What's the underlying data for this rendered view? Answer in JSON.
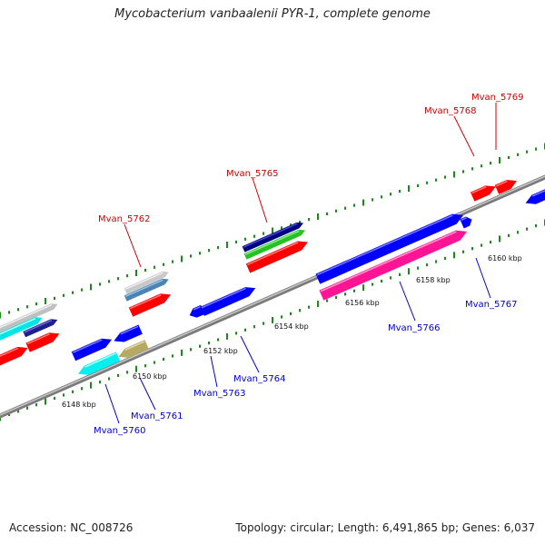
{
  "title": "Mycobacterium vanbaalenii PYR-1, complete genome",
  "footer": {
    "accession": "Accession: NC_008726",
    "summary": "Topology: circular; Length: 6,491,865 bp; Genes: 6,037"
  },
  "colors": {
    "forward_label": "#cc0000",
    "reverse_label": "#0000cc",
    "scale_tick": "#1a8a1a",
    "backbone": "#888888"
  },
  "scale_labels": [
    "6148 kbp",
    "6150 kbp",
    "6152 kbp",
    "6154 kbp",
    "6156 kbp",
    "6158 kbp",
    "6160 kbp"
  ],
  "gene_labels": {
    "top": [
      "Mvan_5762",
      "Mvan_5765",
      "Mvan_5768",
      "Mvan_5769"
    ],
    "bottom": [
      "Mvan_5760",
      "Mvan_5761",
      "Mvan_5763",
      "Mvan_5764",
      "Mvan_5766",
      "Mvan_5767"
    ]
  }
}
